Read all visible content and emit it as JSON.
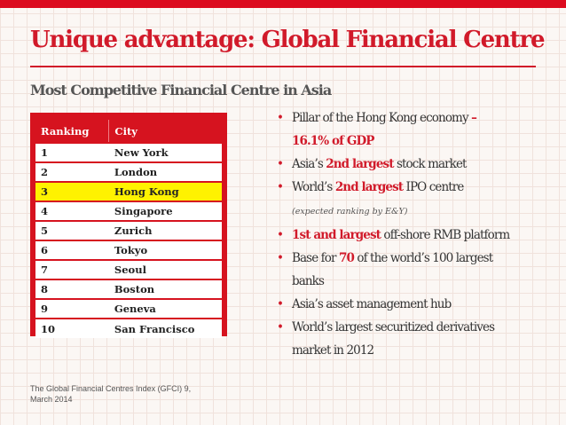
{
  "slide": {
    "title": "Unique advantage: Global Financial Centre",
    "subtitle": "Most Competitive Financial Centre in Asia",
    "source": "The Global Financial Centres Index (GFCI) 9, March 2014",
    "accent_color": "#d11a2a"
  },
  "table": {
    "headers": [
      "Ranking",
      "City"
    ],
    "rows": [
      {
        "rank": "1",
        "city": "New York"
      },
      {
        "rank": "2",
        "city": "London"
      },
      {
        "rank": "3",
        "city": "Hong Kong"
      },
      {
        "rank": "4",
        "city": "Singapore"
      },
      {
        "rank": "5",
        "city": "Zurich"
      },
      {
        "rank": "6",
        "city": "Tokyo"
      },
      {
        "rank": "7",
        "city": "Seoul"
      },
      {
        "rank": "8",
        "city": "Boston"
      },
      {
        "rank": "9",
        "city": "Geneva"
      },
      {
        "rank": "10",
        "city": "San Francisco"
      }
    ],
    "highlight_color": "#fff200"
  },
  "bullets": {
    "b1": {
      "text": "Pillar of the Hong Kong economy ",
      "dash": "–",
      "highlight": "16.1% of GDP"
    },
    "b2": {
      "pre": "Asia’s ",
      "highlight": "2nd largest",
      "post": " stock market"
    },
    "b3": {
      "pre": "World’s ",
      "highlight": "2nd largest",
      "post": " IPO centre",
      "note": "(expected ranking by E&Y)"
    },
    "b4": {
      "highlight": "1st and largest",
      "post": " off-shore RMB platform"
    },
    "b5": {
      "pre": "Base for ",
      "highlight": "70",
      "post": " of the world’s 100 largest",
      "line2": "banks"
    },
    "b6": {
      "text": "Asia’s asset management hub"
    },
    "b7": {
      "text": "World’s largest securitized derivatives",
      "line2": "market in 2012"
    }
  }
}
